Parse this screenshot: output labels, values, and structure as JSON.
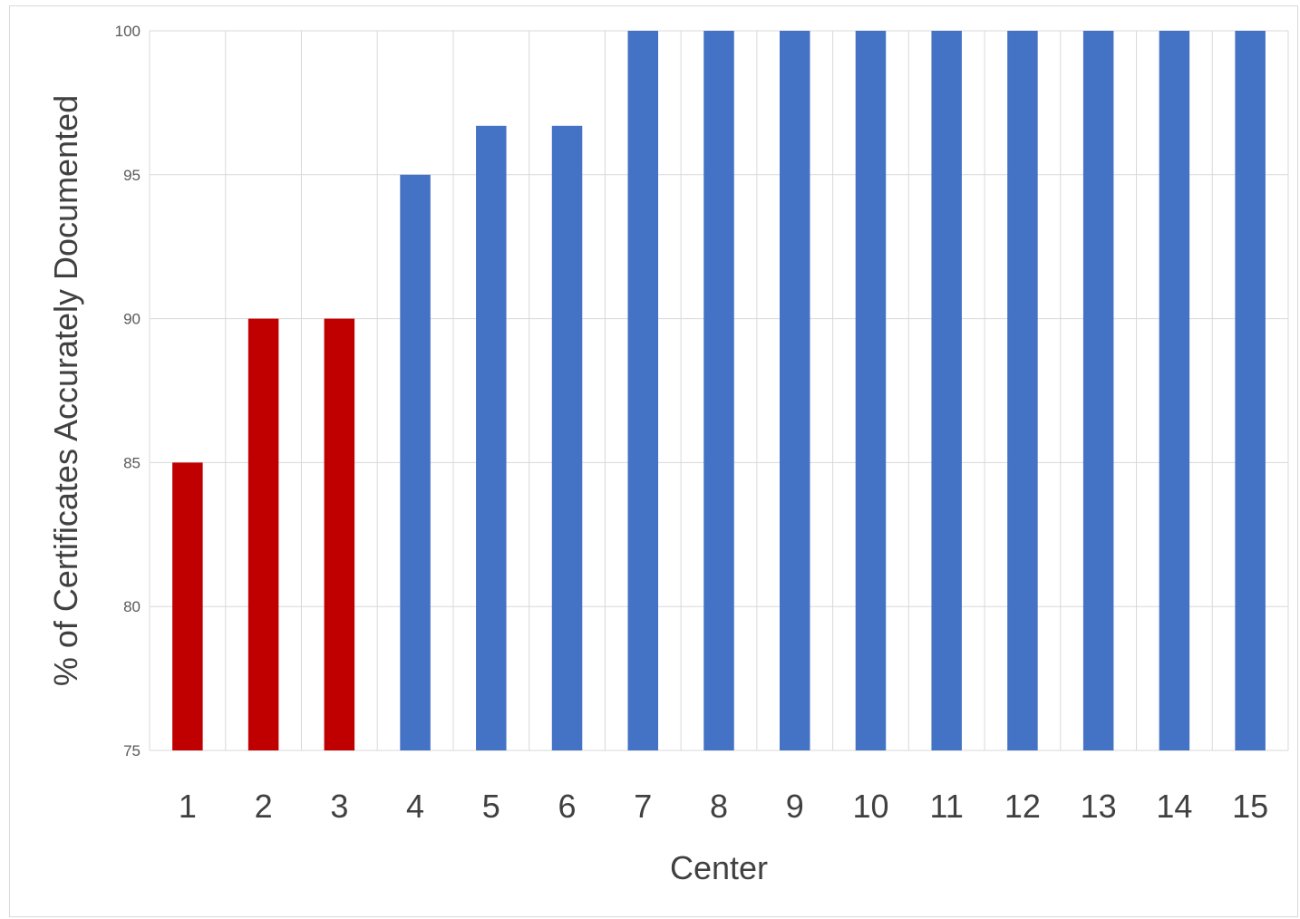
{
  "chart_data": {
    "type": "bar",
    "title": "",
    "xlabel": "Center",
    "ylabel": "% of Certificates Accurately Documented",
    "categories": [
      "1",
      "2",
      "3",
      "4",
      "5",
      "6",
      "7",
      "8",
      "9",
      "10",
      "11",
      "12",
      "13",
      "14",
      "15"
    ],
    "values": [
      85,
      90,
      90,
      95,
      96.7,
      96.7,
      100,
      100,
      100,
      100,
      100,
      100,
      100,
      100,
      100
    ],
    "bar_colors": [
      "#c00000",
      "#c00000",
      "#c00000",
      "#4472c4",
      "#4472c4",
      "#4472c4",
      "#4472c4",
      "#4472c4",
      "#4472c4",
      "#4472c4",
      "#4472c4",
      "#4472c4",
      "#4472c4",
      "#4472c4",
      "#4472c4"
    ],
    "ylim": [
      75,
      100
    ],
    "yticks": [
      75,
      80,
      85,
      90,
      95,
      100
    ],
    "grid": true,
    "legend": "none",
    "gridline_color": "#d9d9d9"
  }
}
